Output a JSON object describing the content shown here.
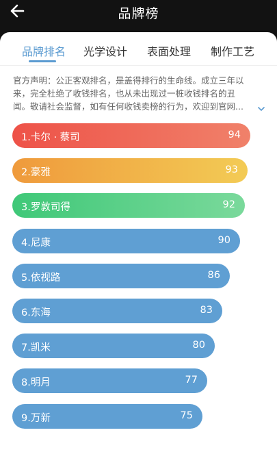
{
  "header": {
    "title": "品牌榜",
    "back_icon": "arrow-left-icon"
  },
  "tabs": [
    {
      "label": "品牌排名",
      "active": true
    },
    {
      "label": "光学设计",
      "active": false
    },
    {
      "label": "表面处理",
      "active": false
    },
    {
      "label": "制作工艺",
      "active": false
    }
  ],
  "notice": {
    "lines": [
      "官方声明：公正客观排名，是盖得排行的生命线。成立三年以",
      "来，完全杜绝了收钱排名，也从未出现过一桩收钱排名的丑",
      "闻。敬请社会监督，如有任何收钱卖榜的行为，欢迎到官网..."
    ],
    "expand_icon": "chevron-down-icon"
  },
  "colors": {
    "accent": "#5b9bd1",
    "header_bg": "#121212",
    "bar_default": "#5f9fd3"
  },
  "ranking": {
    "max_score": 100,
    "items": [
      {
        "label": "1.卡尔 · 蔡司",
        "score": 94,
        "gradient": [
          "#ee5248",
          "#f0816a"
        ]
      },
      {
        "label": "2.豪雅",
        "score": 93,
        "gradient": [
          "#ef9a3c",
          "#f3cb55"
        ]
      },
      {
        "label": "3.罗敦司得",
        "score": 92,
        "gradient": [
          "#3fc878",
          "#7ad99b"
        ]
      },
      {
        "label": "4.尼康",
        "score": 90,
        "gradient": [
          "#5f9fd3",
          "#5f9fd3"
        ]
      },
      {
        "label": "5.依视路",
        "score": 86,
        "gradient": [
          "#5f9fd3",
          "#5f9fd3"
        ]
      },
      {
        "label": "6.东海",
        "score": 83,
        "gradient": [
          "#5f9fd3",
          "#5f9fd3"
        ]
      },
      {
        "label": "7.凯米",
        "score": 80,
        "gradient": [
          "#5f9fd3",
          "#5f9fd3"
        ]
      },
      {
        "label": "8.明月",
        "score": 77,
        "gradient": [
          "#5f9fd3",
          "#5f9fd3"
        ]
      },
      {
        "label": "9.万新",
        "score": 75,
        "gradient": [
          "#5f9fd3",
          "#5f9fd3"
        ]
      }
    ]
  }
}
